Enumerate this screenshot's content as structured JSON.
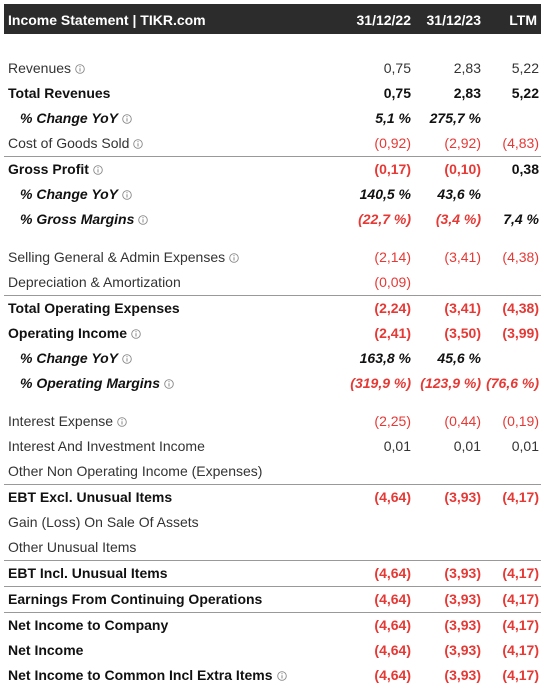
{
  "header": {
    "title": "Income Statement | TIKR.com",
    "columns": [
      "31/12/22",
      "31/12/23",
      "LTM"
    ]
  },
  "rows": [
    {
      "label": "Revenues",
      "cells": [
        "0,75",
        "2,83",
        "5,22"
      ]
    },
    {
      "label": "Total Revenues",
      "cells": [
        "0,75",
        "2,83",
        "5,22"
      ]
    },
    {
      "label": "% Change YoY",
      "cells": [
        "5,1 %",
        "275,7 %",
        null
      ]
    },
    {
      "label": "Cost of Goods Sold",
      "cells": [
        "(0,92)",
        "(2,92)",
        "(4,83)"
      ]
    },
    {
      "label": "Gross Profit",
      "cells": [
        "(0,17)",
        "(0,10)",
        "0,38"
      ]
    },
    {
      "label": "% Change YoY",
      "cells": [
        "140,5 %",
        "43,6 %",
        null
      ]
    },
    {
      "label": "% Gross Margins",
      "cells": [
        "(22,7 %)",
        "(3,4 %)",
        "7,4 %"
      ]
    },
    {
      "label": "Selling General & Admin Expenses",
      "cells": [
        "(2,14)",
        "(3,41)",
        "(4,38)"
      ]
    },
    {
      "label": "Depreciation & Amortization",
      "cells": [
        "(0,09)",
        null,
        null
      ]
    },
    {
      "label": "Total Operating Expenses",
      "cells": [
        "(2,24)",
        "(3,41)",
        "(4,38)"
      ]
    },
    {
      "label": "Operating Income",
      "cells": [
        "(2,41)",
        "(3,50)",
        "(3,99)"
      ]
    },
    {
      "label": "% Change YoY",
      "cells": [
        "163,8 %",
        "45,6 %",
        null
      ]
    },
    {
      "label": "% Operating Margins",
      "cells": [
        "(319,9 %)",
        "(123,9 %)",
        "(76,6 %)"
      ]
    },
    {
      "label": "Interest Expense",
      "cells": [
        "(2,25)",
        "(0,44)",
        "(0,19)"
      ]
    },
    {
      "label": "Interest And Investment Income",
      "cells": [
        "0,01",
        "0,01",
        "0,01"
      ]
    },
    {
      "label": "Other Non Operating Income (Expenses)",
      "cells": [
        null,
        null,
        null
      ]
    },
    {
      "label": "EBT Excl. Unusual Items",
      "cells": [
        "(4,64)",
        "(3,93)",
        "(4,17)"
      ]
    },
    {
      "label": "Gain (Loss) On Sale Of Assets",
      "cells": [
        null,
        null,
        null
      ]
    },
    {
      "label": "Other Unusual Items",
      "cells": [
        null,
        null,
        null
      ]
    },
    {
      "label": "EBT Incl. Unusual Items",
      "cells": [
        "(4,64)",
        "(3,93)",
        "(4,17)"
      ]
    },
    {
      "label": "Earnings From Continuing Operations",
      "cells": [
        "(4,64)",
        "(3,93)",
        "(4,17)"
      ]
    },
    {
      "label": "Net Income to Company",
      "cells": [
        "(4,64)",
        "(3,93)",
        "(4,17)"
      ]
    },
    {
      "label": "Net Income",
      "cells": [
        "(4,64)",
        "(3,93)",
        "(4,17)"
      ]
    },
    {
      "label": "Net Income to Common Incl Extra Items",
      "cells": [
        "(4,64)",
        "(3,93)",
        "(4,17)"
      ]
    }
  ]
}
